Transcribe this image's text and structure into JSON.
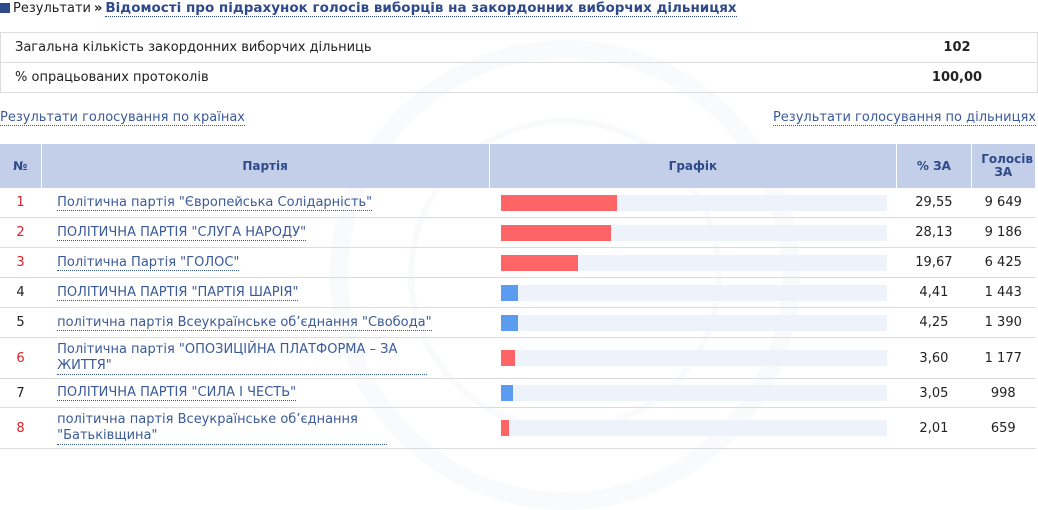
{
  "breadcrumb": {
    "root": "Результати",
    "separator": "»",
    "current": "Відомості про підрахунок голосів виборців на закордонних виборчих дільницях"
  },
  "summary": {
    "rows": [
      {
        "label": "Загальна кількість закордонних виборчих дільниць",
        "value": "102"
      },
      {
        "label": "% опрацьованих протоколів",
        "value": "100,00"
      }
    ]
  },
  "links": {
    "by_country": "Результати голосування по країнах",
    "by_station": "Результати голосування по дільницях"
  },
  "table": {
    "headers": {
      "num": "№",
      "party": "Партія",
      "graph": "Графік",
      "pct": "% ЗА",
      "votes": "Голосів ЗА"
    },
    "rows": [
      {
        "num": "1",
        "party": "Політична партія \"Європейська Солідарність\"",
        "pct": "29,55",
        "votes": "9 649",
        "share": 29.55,
        "color": "#ff6466"
      },
      {
        "num": "2",
        "party": "ПОЛІТИЧНА ПАРТІЯ \"СЛУГА НАРОДУ\"",
        "pct": "28,13",
        "votes": "9 186",
        "share": 28.13,
        "color": "#ff6466"
      },
      {
        "num": "3",
        "party": "Політична Партія \"ГОЛОС\"",
        "pct": "19,67",
        "votes": "6 425",
        "share": 19.67,
        "color": "#ff6466"
      },
      {
        "num": "4",
        "party": "ПОЛІТИЧНА ПАРТІЯ \"ПАРТІЯ ШАРІЯ\"",
        "pct": "4,41",
        "votes": "1 443",
        "share": 4.41,
        "color": "#5b9cf0"
      },
      {
        "num": "5",
        "party": "політична партія Всеукраїнське об’єднання \"Свобода\"",
        "pct": "4,25",
        "votes": "1 390",
        "share": 4.25,
        "color": "#5b9cf0"
      },
      {
        "num": "6",
        "party": "Політична партія \"ОПОЗИЦІЙНА ПЛАТФОРМА – ЗА ЖИТТЯ\"",
        "pct": "3,60",
        "votes": "1 177",
        "share": 3.6,
        "color": "#ff6466"
      },
      {
        "num": "7",
        "party": "ПОЛІТИЧНА ПАРТІЯ \"СИЛА І ЧЕСТЬ\"",
        "pct": "3,05",
        "votes": "998",
        "share": 3.05,
        "color": "#5b9cf0"
      },
      {
        "num": "8",
        "party": "політична партія Всеукраїнське об’єднання \"Батьківщина\"",
        "pct": "2,01",
        "votes": "659",
        "share": 2.01,
        "color": "#ff6466"
      }
    ]
  },
  "colors": {
    "accent": "#2f4a8a",
    "link": "#3a5a9a",
    "header_bg": "#c3cfe9",
    "bar_track": "#eef2fb",
    "number_red": "#d9232a"
  }
}
